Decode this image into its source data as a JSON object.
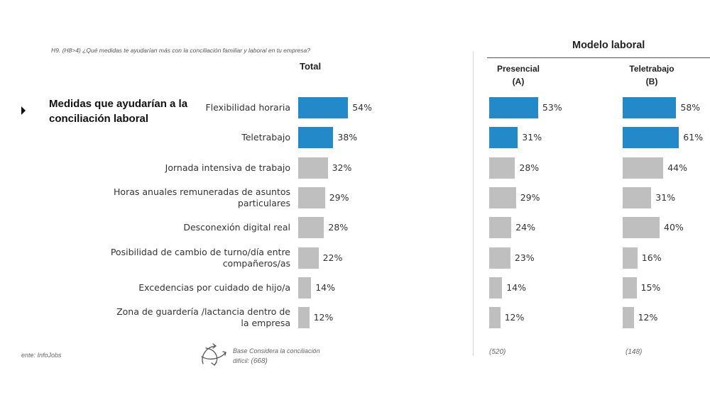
{
  "question": "H9. (H8>4) ¿Qué medidas te ayudarían más con la conciliación familiar y laboral en tu empresa?",
  "section_title": "Medidas que ayudarían a la conciliación laboral",
  "footer": {
    "source": "ente: InfoJobs",
    "base_note": "Base Considera la conciliación difícil:",
    "base_total": "(668)",
    "base_presencial": "(520)",
    "base_teletrabajo": "(148)"
  },
  "colors": {
    "highlight": "#2389c8",
    "default": "#bfbfbf"
  },
  "chart_data": {
    "type": "bar",
    "orientation": "horizontal",
    "group_title": "Modelo laboral",
    "categories": [
      "Flexibilidad horaria",
      "Teletrabajo",
      "Jornada intensiva de trabajo",
      "Horas anuales remuneradas de asuntos particulares",
      "Desconexión digital real",
      "Posibilidad de cambio de turno/día entre compañeros/as",
      "Excedencias por cuidado de hijo/a",
      "Zona de guardería /lactancia dentro de la empresa"
    ],
    "series": [
      {
        "name": "Total",
        "values": [
          54,
          38,
          32,
          29,
          28,
          22,
          14,
          12
        ],
        "labels": [
          "54%",
          "38%",
          "32%",
          "29%",
          "28%",
          "22%",
          "14%",
          "12%"
        ],
        "highlight": [
          true,
          true,
          false,
          false,
          false,
          false,
          false,
          false
        ]
      },
      {
        "name": "Presencial",
        "sub": "(A)",
        "values": [
          53,
          31,
          28,
          29,
          24,
          23,
          14,
          12
        ],
        "labels": [
          "53%",
          "31%",
          "28%",
          "29%",
          "24%",
          "23%",
          "14%",
          "12%"
        ],
        "highlight": [
          true,
          true,
          false,
          false,
          false,
          false,
          false,
          false
        ]
      },
      {
        "name": "Teletrabajo",
        "sub": "(B)",
        "values": [
          58,
          61,
          44,
          31,
          40,
          16,
          15,
          12
        ],
        "labels": [
          "58%",
          "61%",
          "44%",
          "31%",
          "40%",
          "16%",
          "15%",
          "12%"
        ],
        "highlight": [
          true,
          true,
          false,
          false,
          false,
          false,
          false,
          false
        ]
      }
    ]
  }
}
